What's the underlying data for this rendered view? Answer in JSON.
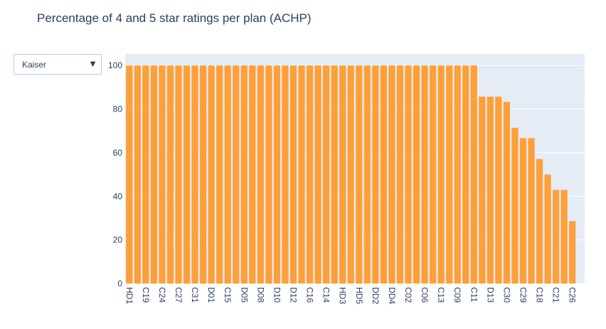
{
  "chart_data": {
    "type": "bar",
    "title": "Percentage of 4 and 5 star ratings per plan (ACHP)",
    "dropdown": "Kaiser",
    "categories": [
      "HD1",
      null,
      "C19",
      null,
      "C24",
      null,
      "C27",
      null,
      "C31",
      null,
      "D01",
      null,
      "C15",
      null,
      "D05",
      null,
      "D08",
      null,
      "D10",
      null,
      "D12",
      null,
      "C16",
      null,
      "C14",
      null,
      "HD3",
      null,
      "HD5",
      null,
      "DD2",
      null,
      "DD4",
      null,
      "C02",
      null,
      "C06",
      null,
      "C13",
      null,
      "C09",
      null,
      "C11",
      null,
      "D13",
      null,
      "C30",
      null,
      "C29",
      null,
      "C18",
      null,
      "C21",
      null,
      "C26",
      null
    ],
    "values": [
      100,
      100,
      100,
      100,
      100,
      100,
      100,
      100,
      100,
      100,
      100,
      100,
      100,
      100,
      100,
      100,
      100,
      100,
      100,
      100,
      100,
      100,
      100,
      100,
      100,
      100,
      100,
      100,
      100,
      100,
      100,
      100,
      100,
      100,
      100,
      100,
      100,
      100,
      100,
      100,
      100,
      100,
      100,
      85.7,
      85.7,
      85.7,
      83.3,
      71.4,
      66.7,
      66.7,
      57.1,
      50,
      42.9,
      42.9,
      28.6,
      0
    ],
    "color": "#ff9f38",
    "ylim": [
      0,
      105.26
    ],
    "yticks": [
      0,
      20,
      40,
      60,
      80,
      100
    ],
    "grid": true
  }
}
